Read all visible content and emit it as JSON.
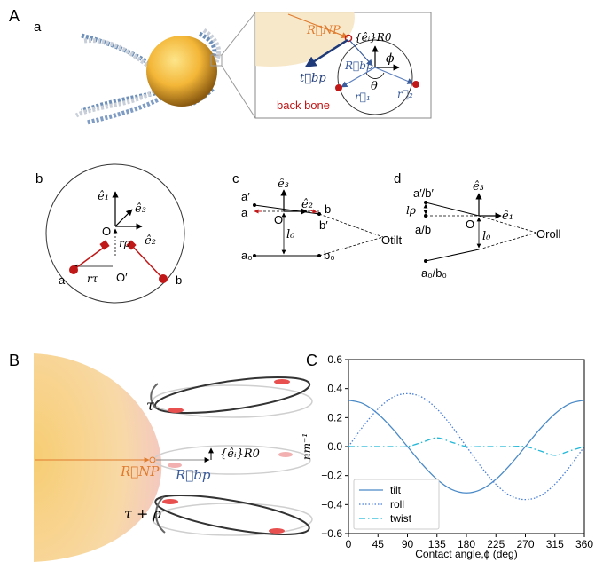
{
  "panels": {
    "A": {
      "letter": "A",
      "sub_a": "a",
      "sub_b": "b",
      "sub_c": "c",
      "sub_d": "d"
    },
    "B": {
      "letter": "B"
    },
    "C": {
      "letter": "C"
    }
  },
  "inset_a": {
    "R_NP": "R⃗NP",
    "ei_R0": "{êᵢ}R0",
    "phi": "ϕ",
    "R_bp": "R⃗bp",
    "t_bp": "t⃗bp",
    "theta": "θ",
    "r1": "r⃗₁",
    "r2": "r⃗₂",
    "backbone": "back bone"
  },
  "diagram_b": {
    "e1": "ê₁",
    "e2": "ê₂",
    "e3": "ê₃",
    "O": "O",
    "O_prime": "O′",
    "r_rho": "rρ",
    "r_tau": "rτ",
    "a": "a",
    "b": "b"
  },
  "diagram_c": {
    "e3": "ê₃",
    "e2": "ê₂",
    "a_prime": "a′",
    "a": "a",
    "b": "b",
    "b_prime": "b′",
    "O": "O",
    "l0": "l₀",
    "O_tilt": "Otilt",
    "a0": "a₀",
    "b0": "b₀"
  },
  "diagram_d": {
    "e3": "ê₃",
    "e1": "ê₁",
    "ab_prime": "a′/b′",
    "l_rho": "lρ",
    "ab": "a/b",
    "O": "O",
    "l0": "l₀",
    "O_roll": "Oroll",
    "ab0": "a₀/b₀"
  },
  "panel_B": {
    "tau": "τ",
    "tau_rho": "τ + ρ",
    "R_NP": "R⃗NP",
    "R_bp": "R⃗bp",
    "ei_R0": "{êᵢ}R0"
  },
  "colors": {
    "nanoparticle": "#f3b637",
    "np_label": "#e07b2e",
    "blue_label": "#3b5c9a",
    "red": "#c01818",
    "tilt": "#4a8ac7",
    "twist": "#21b8d8"
  },
  "chart_data": {
    "type": "line",
    "title": "",
    "xlabel": "Contact angle,ϕ (deg)",
    "ylabel": "nm⁻¹",
    "xlim": [
      0,
      360
    ],
    "ylim": [
      -0.6,
      0.6
    ],
    "xticks": [
      0,
      45,
      90,
      135,
      180,
      225,
      270,
      315,
      360
    ],
    "yticks": [
      -0.6,
      -0.4,
      -0.2,
      0.0,
      0.2,
      0.4,
      0.6
    ],
    "ytick_labels": [
      "−0.6",
      "−0.4",
      "−0.2",
      "0.0",
      "0.2",
      "0.4",
      "0.6"
    ],
    "grid": false,
    "legend_position": "bottom-left",
    "x": [
      0,
      22.5,
      45,
      67.5,
      90,
      112.5,
      135,
      157.5,
      180,
      202.5,
      225,
      247.5,
      270,
      292.5,
      315,
      337.5,
      360
    ],
    "series": [
      {
        "name": "tilt",
        "style": "solid",
        "color": "#4a8ac7",
        "values": [
          0.32,
          0.296,
          0.226,
          0.122,
          0.0,
          -0.122,
          -0.226,
          -0.296,
          -0.32,
          -0.296,
          -0.226,
          -0.122,
          0.0,
          0.122,
          0.226,
          0.296,
          0.32
        ]
      },
      {
        "name": "roll",
        "style": "dotted",
        "color": "#4a7fd8",
        "values": [
          0.0,
          0.14,
          0.26,
          0.34,
          0.365,
          0.34,
          0.26,
          0.14,
          0.0,
          -0.14,
          -0.26,
          -0.34,
          -0.365,
          -0.34,
          -0.26,
          -0.14,
          0.0
        ]
      },
      {
        "name": "twist",
        "style": "dashdot",
        "color": "#21b8d8",
        "values": [
          0.0,
          0.0,
          0.0,
          0.0,
          0.0,
          0.03,
          0.06,
          0.03,
          0.0,
          0.0,
          0.0,
          0.0,
          0.0,
          -0.03,
          -0.06,
          -0.03,
          0.0
        ]
      }
    ]
  }
}
